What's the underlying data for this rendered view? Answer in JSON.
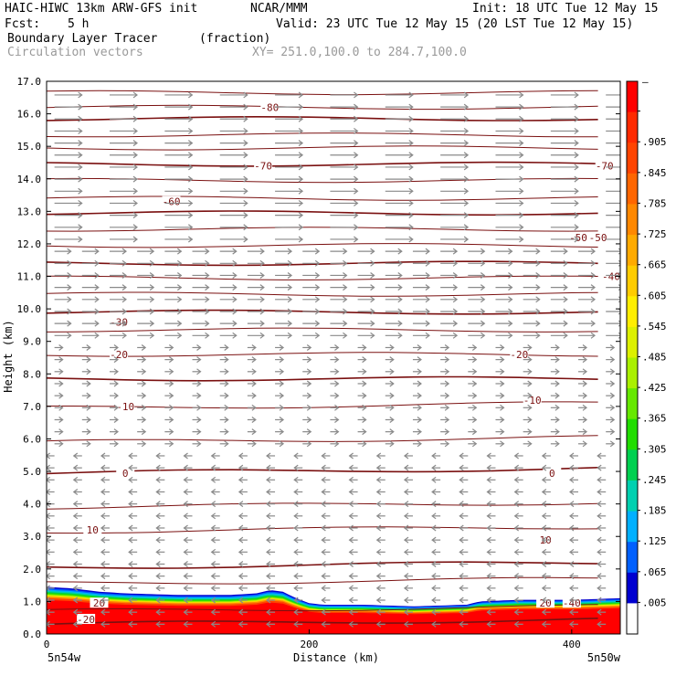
{
  "header": {
    "model": "HAIC-HIWC 13km ARW-GFS init",
    "center": "NCAR/MMM",
    "init": "Init: 18 UTC Tue 12 May 15",
    "fcst_label": "Fcst:",
    "fcst_value": "5 h",
    "valid": "Valid: 23 UTC Tue 12 May 15 (20 LST Tue 12 May 15)",
    "field": "Boundary Layer Tracer",
    "units": "(fraction)",
    "overlay": "Circulation vectors",
    "xy": "XY= 251.0,100.0 to 284.7,100.0"
  },
  "chart_data": {
    "type": "heatmap",
    "ylabel": "Height (km)",
    "xlabel": "Distance (km)",
    "ylim": [
      0,
      17
    ],
    "xlim": [
      0,
      437
    ],
    "yticks": [
      "0.0",
      "1.0",
      "2.0",
      "3.0",
      "4.0",
      "5.0",
      "6.0",
      "7.0",
      "8.0",
      "9.0",
      "10.0",
      "11.0",
      "12.0",
      "13.0",
      "14.0",
      "15.0",
      "16.0",
      "17.0"
    ],
    "xticks": [
      "0",
      "200",
      "400"
    ],
    "left_endpoint": "5n54w",
    "right_endpoint": "5n50w",
    "colorbar": {
      "labels": [
        "–",
        ".905",
        ".845",
        ".785",
        ".725",
        ".665",
        ".605",
        ".545",
        ".485",
        ".425",
        ".365",
        ".305",
        ".245",
        ".185",
        ".125",
        ".065",
        ".005"
      ],
      "colors": [
        "#ff0000",
        "#ff2a00",
        "#ff4400",
        "#ff6600",
        "#ff8800",
        "#ffaa00",
        "#ffcc00",
        "#ffee00",
        "#ddf000",
        "#aaf000",
        "#66e800",
        "#22dd00",
        "#00d050",
        "#00d0b0",
        "#00b0ff",
        "#0060ff",
        "#0000d0",
        "#ffffff"
      ]
    },
    "tracer_top_km": {
      "x": [
        0,
        20,
        40,
        60,
        100,
        140,
        160,
        170,
        180,
        190,
        200,
        210,
        240,
        280,
        320,
        330,
        360,
        400,
        437
      ],
      "y": [
        1.45,
        1.4,
        1.3,
        1.25,
        1.2,
        1.2,
        1.25,
        1.35,
        1.3,
        1.1,
        0.95,
        0.9,
        0.9,
        0.85,
        0.9,
        1.0,
        1.05,
        1.05,
        1.1
      ]
    },
    "isotherm_labels": [
      "20",
      "10",
      "0",
      "-10",
      "-20",
      "-30",
      "-40",
      "-50",
      "-60",
      "-70",
      "-80",
      "-20",
      "10",
      "0",
      "-10",
      "-20",
      "-40",
      "-50",
      "-70",
      "20"
    ],
    "wind_vectors": [
      {
        "z_min": 0.2,
        "z_max": 5.5,
        "direction": "left",
        "length": "short"
      },
      {
        "z_min": 5.5,
        "z_max": 9.0,
        "direction": "right",
        "length": "short"
      },
      {
        "z_min": 9.0,
        "z_max": 12.0,
        "direction": "right",
        "length": "medium"
      },
      {
        "z_min": 12.0,
        "z_max": 16.8,
        "direction": "right",
        "length": "long"
      }
    ]
  }
}
